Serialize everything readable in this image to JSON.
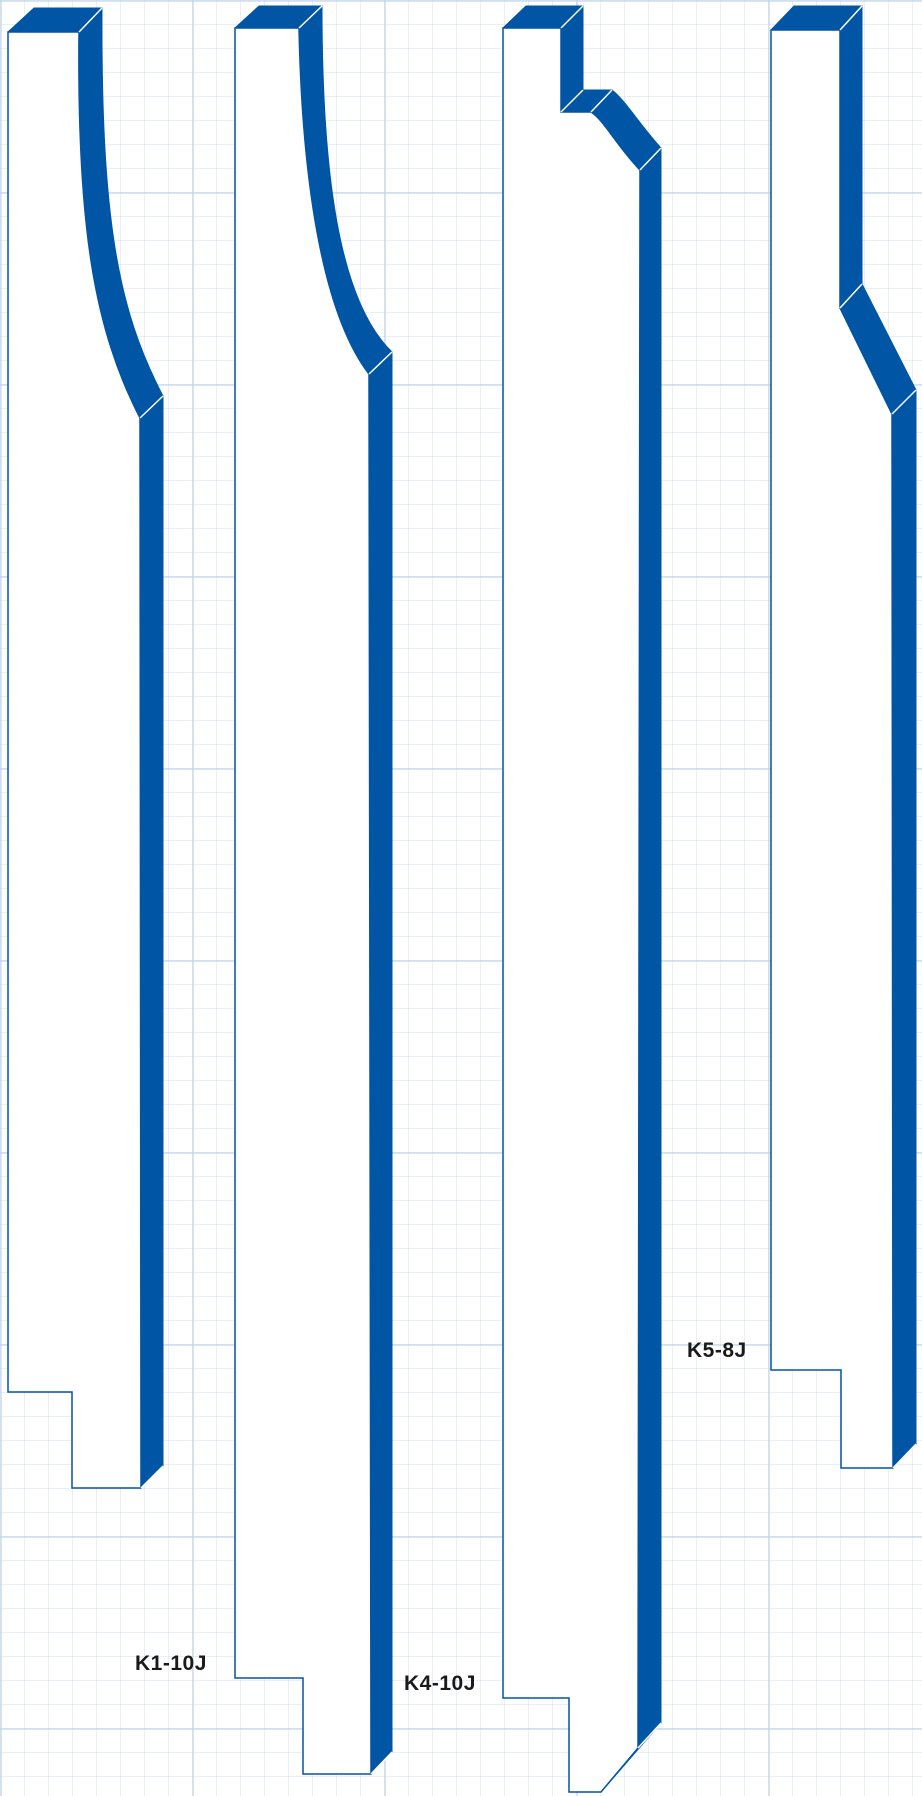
{
  "colors": {
    "accent": "#0055a5",
    "outline": "#0055a5",
    "face": "#ffffff",
    "grid": "#d6e2ef"
  },
  "profiles": [
    {
      "id": "profile-1",
      "label": ""
    },
    {
      "id": "profile-2",
      "label": "K1-10J"
    },
    {
      "id": "profile-3",
      "label": "K4-10J"
    },
    {
      "id": "profile-4",
      "label": "K5-8J"
    }
  ]
}
